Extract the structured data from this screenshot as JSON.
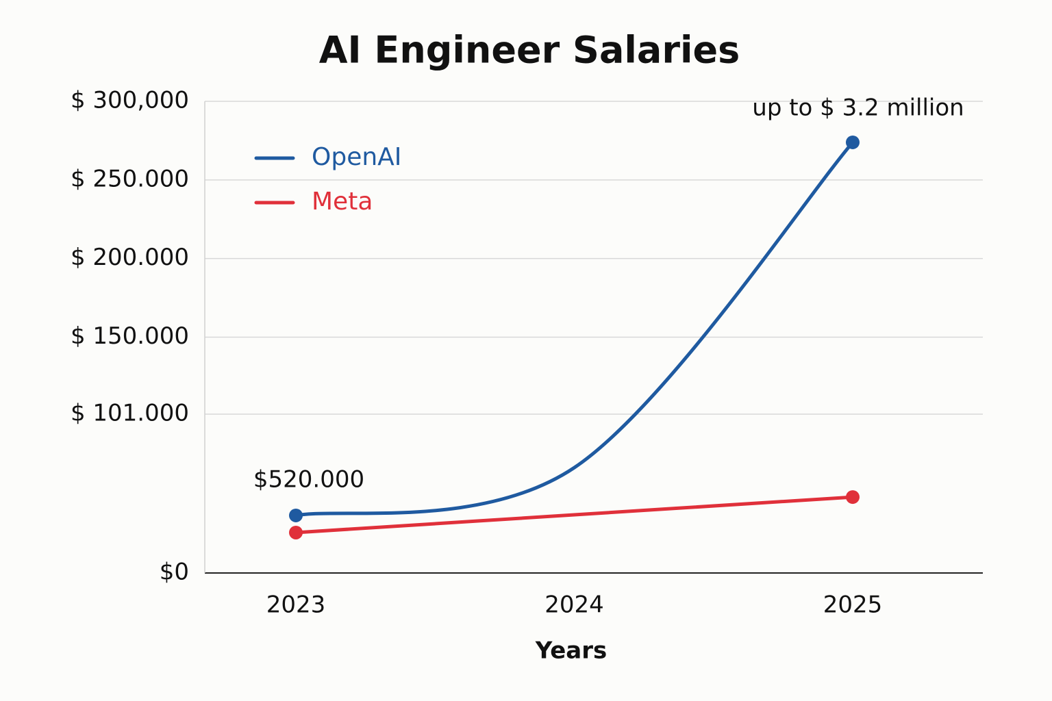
{
  "chart_data": {
    "type": "line",
    "title": "AI Engineer Salaries",
    "x_label": "Years",
    "categories": [
      "2023",
      "2024",
      "2025"
    ],
    "series": [
      {
        "name": "OpenAI",
        "color": "#1f5aa0",
        "values": [
          36600,
          67000,
          273900
        ]
      },
      {
        "name": "Meta",
        "color": "#e0303a",
        "values": [
          25700,
          37000,
          48300
        ]
      }
    ],
    "annotations": [
      "$520.000",
      "up to $ 3.2 million"
    ],
    "ylim": [
      0,
      300000
    ],
    "yticks": [
      {
        "value": 0,
        "label": "$0"
      },
      {
        "value": 101000,
        "label": "$ 101.000"
      },
      {
        "value": 150000,
        "label": "$ 150.000"
      },
      {
        "value": 200000,
        "label": "$ 200.000"
      },
      {
        "value": 250000,
        "label": "$ 250.000"
      },
      {
        "value": 300000,
        "label": "$ 300,000"
      }
    ],
    "grid": true,
    "legend": "upper left"
  }
}
